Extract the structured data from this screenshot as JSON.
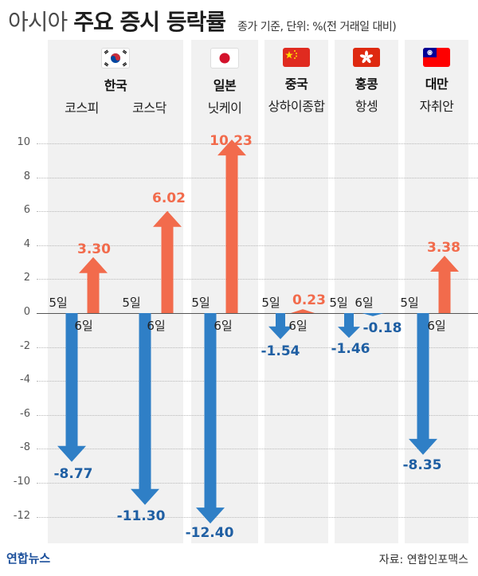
{
  "header": {
    "title_light": "아시아",
    "title_bold": "주요 증시 등락률",
    "subtitle": "종가 기준, 단위: %(전 거래일 대비)"
  },
  "footer": {
    "logo": "연합뉴스",
    "source": "자료: 연합인포맥스"
  },
  "colors": {
    "up": "#f26b4c",
    "down": "#2f7fc6",
    "panel": "#f1f1f1"
  },
  "countries": [
    {
      "name": "한국",
      "flag": "korea-flag-icon",
      "indices": [
        "코스피",
        "코스닥"
      ]
    },
    {
      "name": "일본",
      "flag": "japan-flag-icon",
      "indices": [
        "닛케이"
      ]
    },
    {
      "name": "중국",
      "flag": "china-flag-icon",
      "indices": [
        "상하이종합"
      ]
    },
    {
      "name": "홍콩",
      "flag": "hongkong-flag-icon",
      "indices": [
        "항셍"
      ]
    },
    {
      "name": "대만",
      "flag": "taiwan-flag-icon",
      "indices": [
        "자취안"
      ]
    }
  ],
  "chart_data": {
    "type": "bar",
    "title": "아시아 주요 증시 등락률",
    "ylim": [
      -13,
      11
    ],
    "yticks": [
      10,
      8,
      6,
      4,
      2,
      0,
      -2,
      -4,
      -6,
      -8,
      -10,
      -12
    ],
    "ytick_labels": [
      "10",
      "8",
      "6",
      "4",
      "2",
      "0",
      "-2",
      "-4",
      "-6",
      "-8",
      "-10",
      "-12"
    ],
    "categories": [
      "코스피",
      "코스닥",
      "닛케이",
      "상하이종합",
      "항셍",
      "자취안"
    ],
    "series": [
      {
        "name": "5일",
        "values": [
          -8.77,
          -11.3,
          -12.4,
          -1.54,
          -1.46,
          -8.35
        ]
      },
      {
        "name": "6일",
        "values": [
          3.3,
          6.02,
          10.23,
          0.23,
          -0.18,
          3.38
        ]
      }
    ],
    "value_labels": {
      "5일": [
        "-8.77",
        "-11.30",
        "-12.40",
        "-1.54",
        "-1.46",
        "-8.35"
      ],
      "6일": [
        "3.30",
        "6.02",
        "10.23",
        "0.23",
        "-0.18",
        "3.38"
      ]
    },
    "day_labels": [
      "5일",
      "6일"
    ],
    "grid": true
  }
}
